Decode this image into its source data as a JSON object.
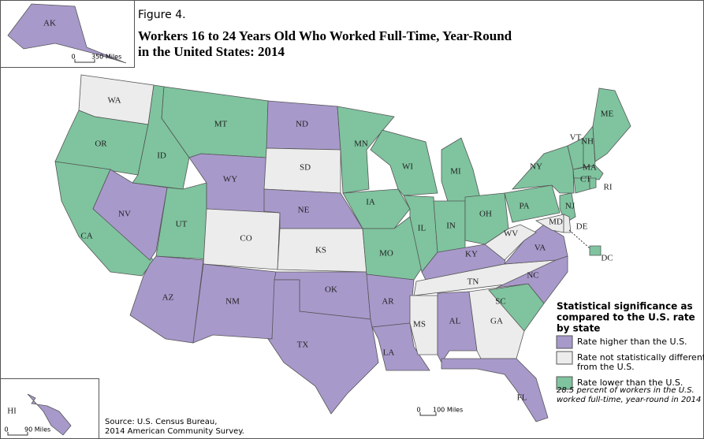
{
  "figure": "Figure 4.",
  "title_lines": [
    "Workers 16 to 24 Years Old Who Worked Full-Time, Year-Round",
    "in the United States: 2014"
  ],
  "legend": {
    "title_lines": [
      "Statistical significance as",
      "compared to the U.S. rate",
      "by state"
    ],
    "items": [
      {
        "lines": [
          "Rate higher than the U.S."
        ],
        "color": "#a899cb"
      },
      {
        "lines": [
          "Rate not statistically different",
          "from the U.S."
        ],
        "color": "#ececec"
      },
      {
        "lines": [
          "Rate lower than the U.S."
        ],
        "color": "#7fc49f"
      }
    ]
  },
  "note_lines": [
    "28.5 percent of workers in the U.S.",
    "worked full-time, year-round in 2014"
  ],
  "source_lines": [
    "Source: U.S. Census Bureau,",
    "2014 American Community Survey."
  ],
  "scales": {
    "alaska": [
      "0",
      "350 Miles"
    ],
    "main": [
      "0",
      "100 Miles"
    ],
    "hawaii": [
      "0",
      "90 Miles"
    ]
  },
  "states": [
    {
      "label": "WA",
      "group": 1
    },
    {
      "label": "OR",
      "group": 2
    },
    {
      "label": "CA",
      "group": 2
    },
    {
      "label": "ID",
      "group": 2
    },
    {
      "label": "NV",
      "group": 0
    },
    {
      "label": "UT",
      "group": 2
    },
    {
      "label": "AZ",
      "group": 0
    },
    {
      "label": "MT",
      "group": 2
    },
    {
      "label": "WY",
      "group": 0
    },
    {
      "label": "CO",
      "group": 1
    },
    {
      "label": "NM",
      "group": 0
    },
    {
      "label": "ND",
      "group": 0
    },
    {
      "label": "SD",
      "group": 1
    },
    {
      "label": "NE",
      "group": 0
    },
    {
      "label": "KS",
      "group": 1
    },
    {
      "label": "OK",
      "group": 0
    },
    {
      "label": "TX",
      "group": 0
    },
    {
      "label": "MN",
      "group": 2
    },
    {
      "label": "IA",
      "group": 2
    },
    {
      "label": "MO",
      "group": 2
    },
    {
      "label": "AR",
      "group": 0
    },
    {
      "label": "LA",
      "group": 0
    },
    {
      "label": "WI",
      "group": 2
    },
    {
      "label": "IL",
      "group": 2
    },
    {
      "label": "MI",
      "group": 2
    },
    {
      "label": "IN",
      "group": 2
    },
    {
      "label": "OH",
      "group": 2
    },
    {
      "label": "KY",
      "group": 0
    },
    {
      "label": "TN",
      "group": 1
    },
    {
      "label": "MS",
      "group": 1
    },
    {
      "label": "AL",
      "group": 0
    },
    {
      "label": "GA",
      "group": 1
    },
    {
      "label": "FL",
      "group": 0
    },
    {
      "label": "SC",
      "group": 2
    },
    {
      "label": "NC",
      "group": 0
    },
    {
      "label": "VA",
      "group": 0
    },
    {
      "label": "WV",
      "group": 1
    },
    {
      "label": "PA",
      "group": 2
    },
    {
      "label": "NY",
      "group": 2
    },
    {
      "label": "VT",
      "group": 2
    },
    {
      "label": "NH",
      "group": 2
    },
    {
      "label": "ME",
      "group": 2
    },
    {
      "label": "MA",
      "group": 2
    },
    {
      "label": "CT",
      "group": 2
    },
    {
      "label": "RI",
      "group": 2
    },
    {
      "label": "NJ",
      "group": 2
    },
    {
      "label": "MD",
      "group": 1
    },
    {
      "label": "DE",
      "group": 1
    },
    {
      "label": "DC",
      "group": 2
    },
    {
      "label": "AK",
      "group": 0
    },
    {
      "label": "HI",
      "group": 0
    }
  ]
}
